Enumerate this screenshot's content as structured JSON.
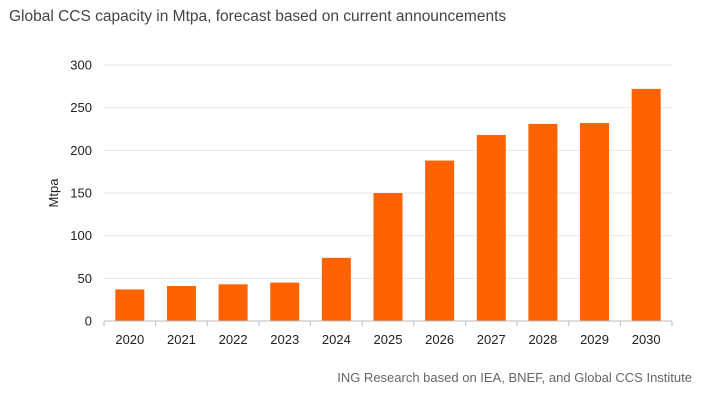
{
  "chart_data": {
    "type": "bar",
    "title": "Global CCS capacity in Mtpa, forecast based on current announcements",
    "source": "ING Research based on IEA, BNEF, and Global CCS Institute",
    "ylabel": "Mtpa",
    "xlabel": "",
    "ylim": [
      0,
      300
    ],
    "yticks": [
      0,
      50,
      100,
      150,
      200,
      250,
      300
    ],
    "categories": [
      "2020",
      "2021",
      "2022",
      "2023",
      "2024",
      "2025",
      "2026",
      "2027",
      "2028",
      "2029",
      "2030"
    ],
    "values": [
      37,
      41,
      43,
      45,
      74,
      150,
      188,
      218,
      231,
      232,
      272
    ],
    "bar_color": "#FF6200",
    "grid": true
  }
}
